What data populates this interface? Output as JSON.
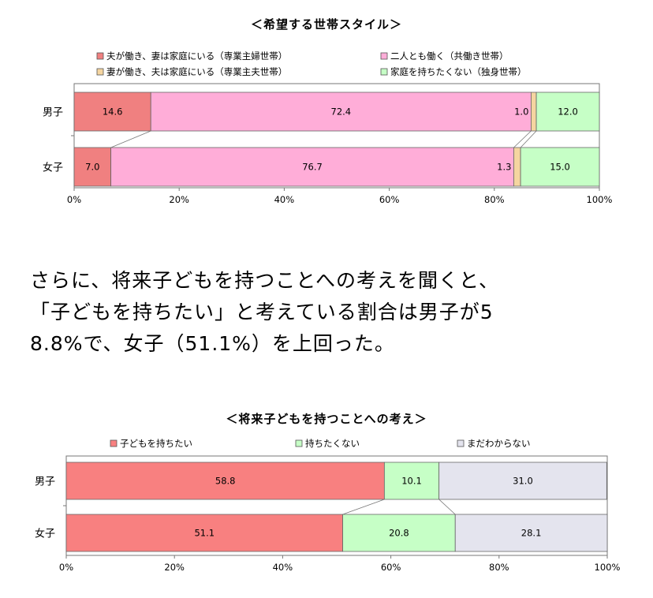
{
  "paragraph": {
    "lines": [
      "さらに、将来子どもを持つことへの考えを聞くと、",
      "「子どもを持ちたい」と考えている割合は男子が5",
      "8.8%で、女子（51.1%）を上回った。"
    ]
  },
  "chart_data": [
    {
      "type": "bar",
      "orientation": "horizontal",
      "stacked": "percent",
      "title": "＜希望する世帯スタイル＞",
      "categories": [
        "男子",
        "女子"
      ],
      "series": [
        {
          "name": "夫が働き、妻は家庭にいる（専業主婦世帯）",
          "values": [
            14.6,
            7.0
          ],
          "color": "#f08080"
        },
        {
          "name": "二人とも働く（共働き世帯）",
          "values": [
            72.4,
            76.7
          ],
          "color": "#ffadd8"
        },
        {
          "name": "妻が働き、夫は家庭にいる（専業主夫世帯）",
          "values": [
            1.0,
            1.3
          ],
          "color": "#f5d5a0"
        },
        {
          "name": "家庭を持ちたくない（独身世帯）",
          "values": [
            12.0,
            15.0
          ],
          "color": "#c6ffc6"
        }
      ],
      "xticks": [
        "0%",
        "20%",
        "40%",
        "60%",
        "80%",
        "100%"
      ],
      "xlim": [
        0,
        100
      ],
      "legend": "top",
      "grid": false
    },
    {
      "type": "bar",
      "orientation": "horizontal",
      "stacked": "percent",
      "title": "＜将来子どもを持つことへの考え＞",
      "categories": [
        "男子",
        "女子"
      ],
      "series": [
        {
          "name": "子どもを持ちたい",
          "values": [
            58.8,
            51.1
          ],
          "color": "#f88080"
        },
        {
          "name": "持ちたくない",
          "values": [
            10.1,
            20.8
          ],
          "color": "#c6ffc6"
        },
        {
          "name": "まだわからない",
          "values": [
            31.0,
            28.1
          ],
          "color": "#e4e4ee"
        }
      ],
      "xticks": [
        "0%",
        "20%",
        "40%",
        "60%",
        "80%",
        "100%"
      ],
      "xlim": [
        0,
        100
      ],
      "legend": "top",
      "grid": false
    }
  ]
}
